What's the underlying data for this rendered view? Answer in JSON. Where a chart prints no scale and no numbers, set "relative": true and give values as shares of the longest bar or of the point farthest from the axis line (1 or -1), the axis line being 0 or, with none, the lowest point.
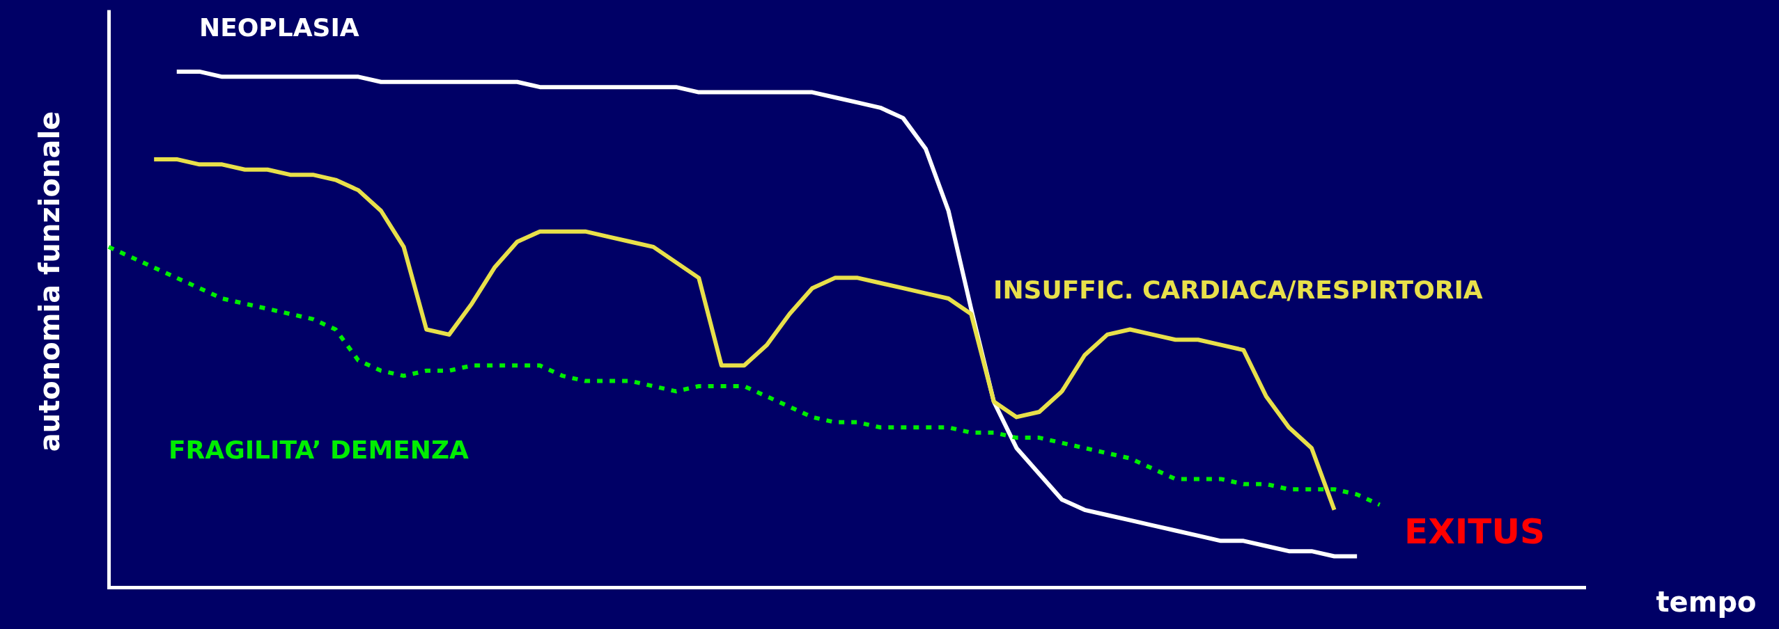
{
  "chart_data": {
    "type": "line",
    "relative": true,
    "ylabel": "autonomia funzionale",
    "xlabel": "tempo",
    "annotations": [
      "EXITUS"
    ],
    "categories": [
      null,
      null,
      null,
      null,
      null,
      null,
      null,
      null,
      null,
      null,
      null,
      null,
      null,
      null,
      null,
      null,
      null,
      null,
      null,
      null,
      null,
      null,
      null,
      null,
      null,
      null,
      null,
      null,
      null,
      null,
      null,
      null,
      null,
      null,
      null,
      null,
      null,
      null,
      null,
      null,
      null,
      null,
      null,
      null,
      null,
      null,
      null,
      null,
      null,
      null,
      null,
      null,
      null,
      null,
      null,
      null,
      null,
      null,
      null,
      null,
      null,
      null,
      null,
      null,
      null,
      null
    ],
    "series": [
      {
        "name": "NEOPLASIA",
        "color": "#ffffff",
        "line_style": "solid",
        "values": [
          null,
          null,
          null,
          1.0,
          1.0,
          0.99,
          0.99,
          0.99,
          0.99,
          0.99,
          0.99,
          0.99,
          0.98,
          0.98,
          0.98,
          0.98,
          0.98,
          0.98,
          0.98,
          0.97,
          0.97,
          0.97,
          0.97,
          0.97,
          0.97,
          0.97,
          0.96,
          0.96,
          0.96,
          0.96,
          0.96,
          0.96,
          0.95,
          0.94,
          0.93,
          0.91,
          0.85,
          0.73,
          0.54,
          0.36,
          0.27,
          0.22,
          0.17,
          0.15,
          0.14,
          0.13,
          0.12,
          0.11,
          0.1,
          0.09,
          0.09,
          0.08,
          0.07,
          0.07,
          0.06,
          0.06,
          null,
          null,
          null,
          null,
          null,
          null,
          null,
          null,
          null,
          null
        ]
      },
      {
        "name": "INSUFFIC. CARDIACA/RESPIRTORIA",
        "color": "#e8e04a",
        "line_style": "solid",
        "values": [
          null,
          null,
          0.83,
          0.83,
          0.82,
          0.82,
          0.81,
          0.81,
          0.8,
          0.8,
          0.79,
          0.77,
          0.73,
          0.66,
          0.5,
          0.49,
          0.55,
          0.62,
          0.67,
          0.69,
          0.69,
          0.69,
          0.68,
          0.67,
          0.66,
          0.63,
          0.6,
          0.43,
          0.43,
          0.47,
          0.53,
          0.58,
          0.6,
          0.6,
          0.59,
          0.58,
          0.57,
          0.56,
          0.53,
          0.36,
          0.33,
          0.34,
          0.38,
          0.45,
          0.49,
          0.5,
          0.49,
          0.48,
          0.48,
          0.47,
          0.46,
          0.37,
          0.31,
          0.27,
          0.15,
          null,
          null,
          null,
          null,
          null,
          null,
          null,
          null,
          null,
          null,
          null
        ]
      },
      {
        "name": "FRAGILITA’ DEMENZA",
        "color": "#00ee00",
        "line_style": "dotted",
        "values": [
          0.66,
          0.64,
          0.62,
          0.6,
          0.58,
          0.56,
          0.55,
          0.54,
          0.53,
          0.52,
          0.5,
          0.44,
          0.42,
          0.41,
          0.42,
          0.42,
          0.43,
          0.43,
          0.43,
          0.43,
          0.41,
          0.4,
          0.4,
          0.4,
          0.39,
          0.38,
          0.39,
          0.39,
          0.39,
          0.37,
          0.35,
          0.33,
          0.32,
          0.32,
          0.31,
          0.31,
          0.31,
          0.31,
          0.3,
          0.3,
          0.29,
          0.29,
          0.28,
          0.27,
          0.26,
          0.25,
          0.23,
          0.21,
          0.21,
          0.21,
          0.2,
          0.2,
          0.19,
          0.19,
          0.19,
          0.18,
          0.16,
          null,
          null,
          null,
          null,
          null,
          null,
          null,
          null,
          null
        ]
      }
    ]
  }
}
